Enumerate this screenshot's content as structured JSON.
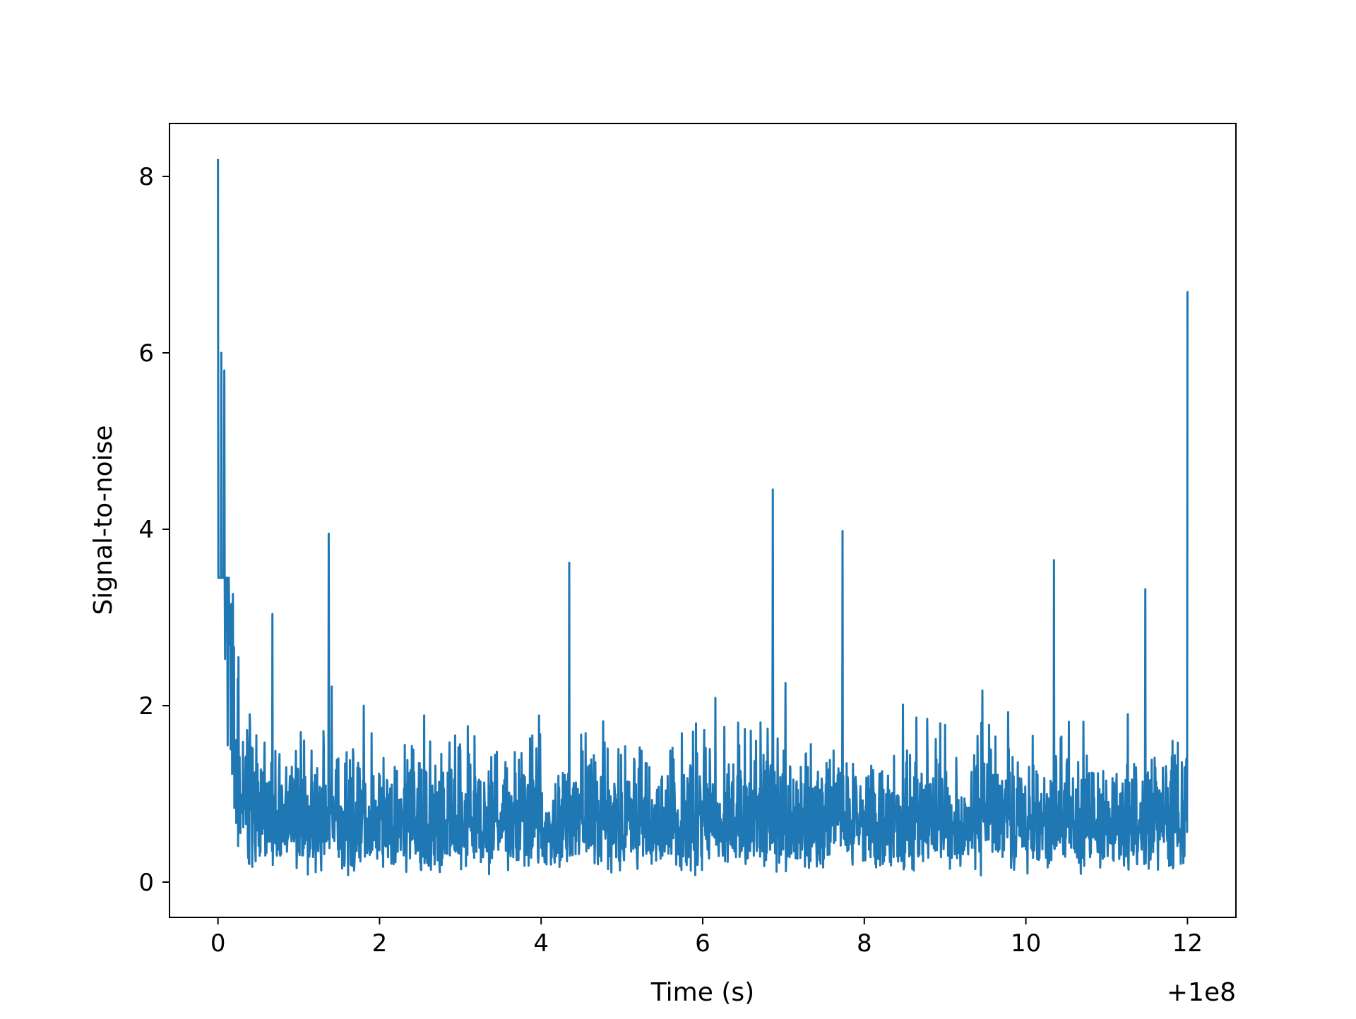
{
  "chart_data": {
    "type": "line",
    "title": "",
    "xlabel": "Time (s)",
    "ylabel": "Signal-to-noise",
    "x_offset_label": "+1e8",
    "xlim": [
      -0.6,
      12.6
    ],
    "ylim": [
      -0.4,
      8.6
    ],
    "xticks": [
      0,
      2,
      4,
      6,
      8,
      10,
      12
    ],
    "xtick_labels": [
      "0",
      "2",
      "4",
      "6",
      "8",
      "10",
      "12"
    ],
    "yticks": [
      0,
      2,
      4,
      6,
      8
    ],
    "ytick_labels": [
      "0",
      "2",
      "4",
      "6",
      "8"
    ],
    "grid": false,
    "series": [
      {
        "color": "#1f77b4",
        "x_range": [
          0,
          12
        ],
        "envelope": {
          "x": [
            0,
            0.02,
            0.06,
            0.1,
            0.15,
            0.2,
            0.3,
            0.5,
            1,
            2,
            3,
            4,
            5,
            6,
            7,
            8,
            9,
            10,
            11,
            11.95,
            11.98,
            12.0
          ],
          "baseline": [
            5.8,
            4.8,
            3.4,
            2.6,
            1.8,
            1.2,
            0.9,
            0.75,
            0.7,
            0.7,
            0.7,
            0.7,
            0.7,
            0.7,
            0.7,
            0.7,
            0.7,
            0.7,
            0.7,
            0.7,
            0.9,
            1.0
          ]
        },
        "spikes": [
          {
            "x": 0.0,
            "y": 8.2
          },
          {
            "x": 0.04,
            "y": 6.0
          },
          {
            "x": 0.08,
            "y": 5.8
          },
          {
            "x": 1.37,
            "y": 3.95
          },
          {
            "x": 4.35,
            "y": 3.62
          },
          {
            "x": 6.87,
            "y": 4.45
          },
          {
            "x": 7.73,
            "y": 3.98
          },
          {
            "x": 10.35,
            "y": 3.65
          },
          {
            "x": 11.48,
            "y": 3.32
          },
          {
            "x": 12.0,
            "y": 6.7
          }
        ]
      }
    ]
  }
}
